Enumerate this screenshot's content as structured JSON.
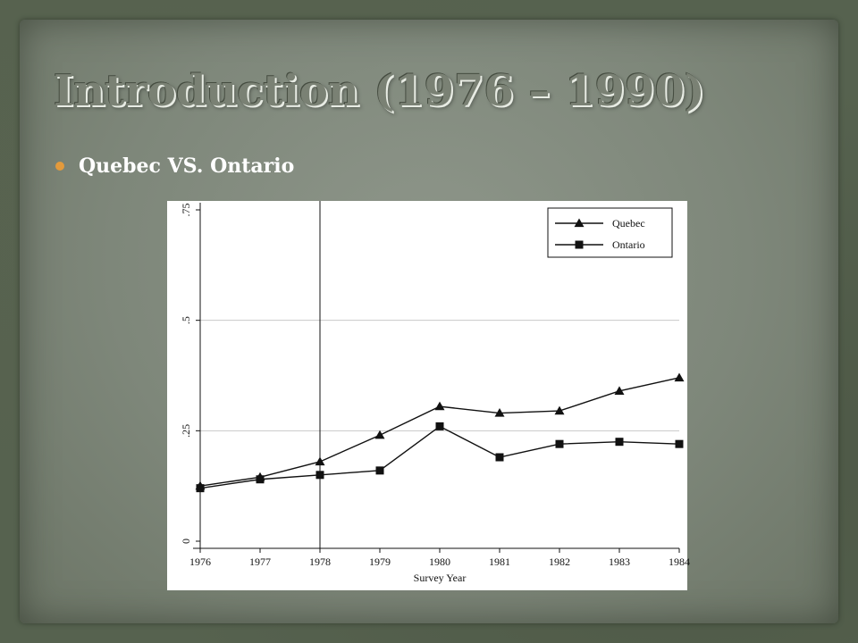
{
  "slide": {
    "title": "Introduction (1976 – 1990)",
    "bullet": "Quebec VS. Ontario"
  },
  "colors": {
    "bullet": "#e39a3c",
    "title_text": "#7a8174",
    "line": "#111111"
  },
  "chart_data": {
    "type": "line",
    "x": [
      1976,
      1977,
      1978,
      1979,
      1980,
      1981,
      1982,
      1983,
      1984
    ],
    "xlabel": "Survey Year",
    "ylabel": "",
    "ylim": [
      0,
      0.75
    ],
    "y_ticks": [
      0,
      0.25,
      0.5,
      0.75
    ],
    "y_tick_labels": [
      "0",
      ".25",
      ".5",
      ".75"
    ],
    "grid": "horizontal at .25 and .5",
    "reference_line_x": 1978,
    "legend_position": "top-right",
    "series": [
      {
        "name": "Quebec",
        "marker": "triangle",
        "values": [
          0.125,
          0.145,
          0.18,
          0.24,
          0.305,
          0.29,
          0.295,
          0.34,
          0.37
        ]
      },
      {
        "name": "Ontario",
        "marker": "square",
        "values": [
          0.12,
          0.14,
          0.15,
          0.16,
          0.26,
          0.19,
          0.22,
          0.225,
          0.22
        ]
      }
    ]
  }
}
